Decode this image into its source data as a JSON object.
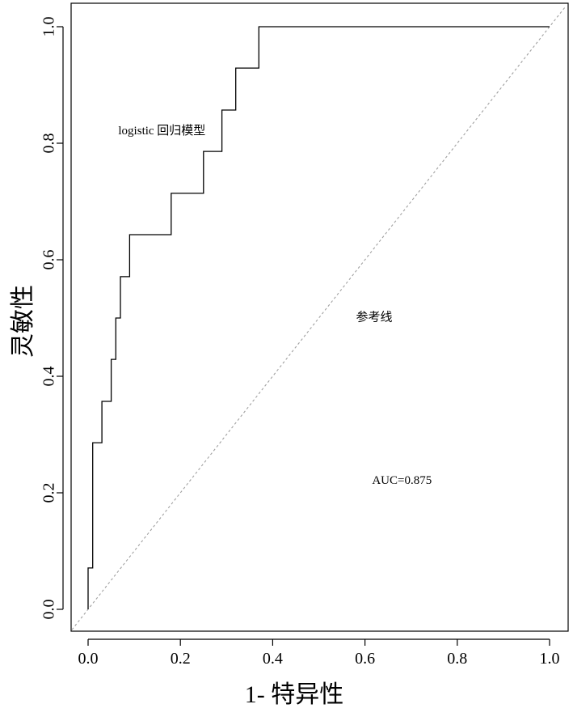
{
  "chart_data": {
    "type": "line",
    "title": "",
    "xlabel": "1- 特异性",
    "ylabel": "灵敏性",
    "xlim": [
      0.0,
      1.0
    ],
    "ylim": [
      0.0,
      1.0
    ],
    "x_ticks": [
      "0.0",
      "0.2",
      "0.4",
      "0.6",
      "0.8",
      "1.0"
    ],
    "y_ticks": [
      "0.0",
      "0.2",
      "0.4",
      "0.6",
      "0.8",
      "1.0"
    ],
    "grid": false,
    "legend": "none",
    "series": [
      {
        "name": "logistic 回归模型",
        "style": "step",
        "color": "#000000",
        "points": [
          [
            0.0,
            0.0
          ],
          [
            0.0,
            0.071
          ],
          [
            0.01,
            0.071
          ],
          [
            0.01,
            0.286
          ],
          [
            0.03,
            0.286
          ],
          [
            0.03,
            0.357
          ],
          [
            0.05,
            0.357
          ],
          [
            0.05,
            0.429
          ],
          [
            0.06,
            0.429
          ],
          [
            0.06,
            0.5
          ],
          [
            0.07,
            0.5
          ],
          [
            0.07,
            0.571
          ],
          [
            0.09,
            0.571
          ],
          [
            0.09,
            0.643
          ],
          [
            0.18,
            0.643
          ],
          [
            0.18,
            0.714
          ],
          [
            0.25,
            0.714
          ],
          [
            0.25,
            0.786
          ],
          [
            0.29,
            0.786
          ],
          [
            0.29,
            0.857
          ],
          [
            0.32,
            0.857
          ],
          [
            0.32,
            0.929
          ],
          [
            0.37,
            0.929
          ],
          [
            0.37,
            1.0
          ],
          [
            1.0,
            1.0
          ]
        ]
      },
      {
        "name": "参考线",
        "style": "dashed",
        "color": "#a0a0a0",
        "points": [
          [
            -0.035,
            -0.035
          ],
          [
            1.035,
            1.035
          ]
        ]
      }
    ],
    "annotations": [
      {
        "text": "logistic 回归模型",
        "x": 0.16,
        "y": 0.82
      },
      {
        "text": "参考线",
        "x": 0.62,
        "y": 0.5
      },
      {
        "text": "AUC=0.875",
        "x": 0.68,
        "y": 0.22
      }
    ]
  }
}
